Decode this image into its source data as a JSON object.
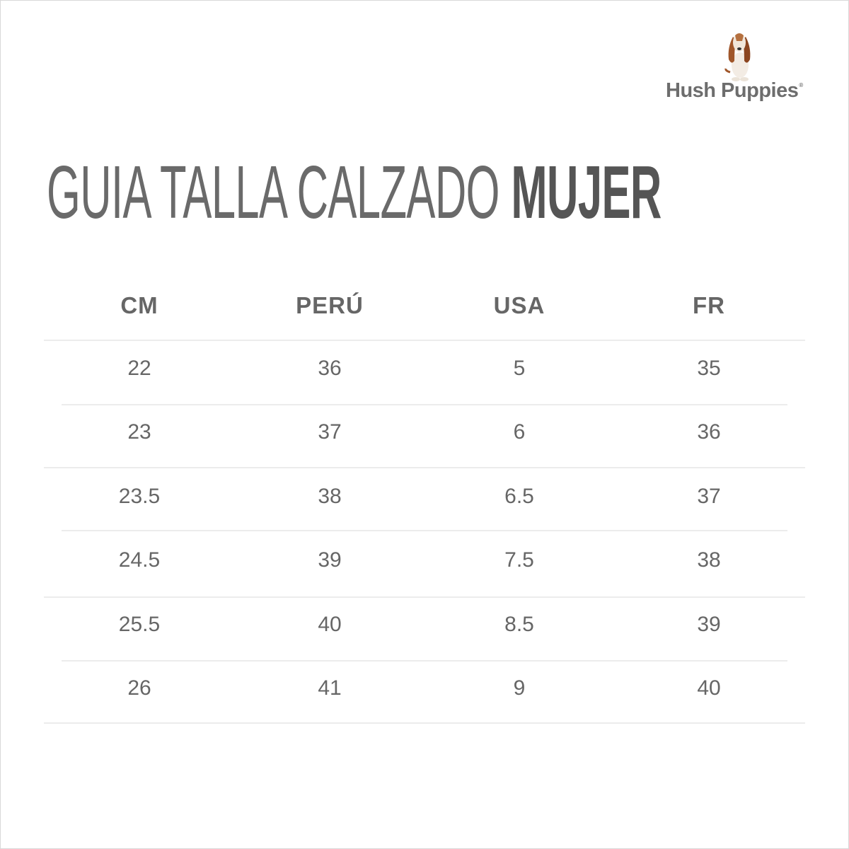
{
  "brand": {
    "name": "Hush Puppies",
    "registered_mark": "®",
    "mascot_icon": "basset-hound-icon"
  },
  "title": {
    "regular": "GUIA TALLA CALZADO",
    "bold": "MUJER"
  },
  "table": {
    "headers": [
      "CM",
      "PERÚ",
      "USA",
      "FR"
    ],
    "rows": [
      [
        "22",
        "36",
        "5",
        "35"
      ],
      [
        "23",
        "37",
        "6",
        "36"
      ],
      [
        "23.5",
        "38",
        "6.5",
        "37"
      ],
      [
        "24.5",
        "39",
        "7.5",
        "38"
      ],
      [
        "25.5",
        "40",
        "8.5",
        "39"
      ],
      [
        "26",
        "41",
        "9",
        "40"
      ]
    ]
  },
  "colors": {
    "text": "#666666",
    "divider": "#ececec",
    "dog_ears": "#a0562a"
  }
}
